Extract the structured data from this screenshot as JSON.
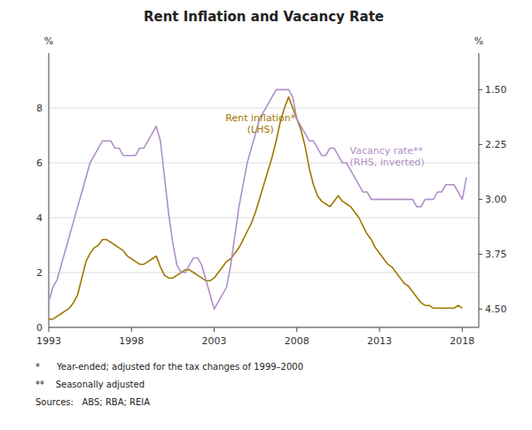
{
  "chart_data": {
    "type": "line",
    "title": "Rent Inflation and Vacancy Rate",
    "ylabel": "%",
    "y2label": "%",
    "xlim": [
      1993,
      2019
    ],
    "xticks": [
      1993,
      1998,
      2003,
      2008,
      2013,
      2018
    ],
    "ylim": [
      0,
      10
    ],
    "yticks": [
      0,
      2,
      4,
      6,
      8
    ],
    "y2lim": [
      4.75,
      1.0
    ],
    "y2ticks": [
      {
        "value": 4.5,
        "label": "4.50"
      },
      {
        "value": 3.75,
        "label": "3.75"
      },
      {
        "value": 3.0,
        "label": "3.00"
      },
      {
        "value": 2.25,
        "label": "2.25"
      },
      {
        "value": 1.5,
        "label": "1.50"
      }
    ],
    "grid": true,
    "series": [
      {
        "color": "#a07800",
        "x": [
          1993.0,
          1993.25,
          1993.5,
          1993.75,
          1994.0,
          1994.25,
          1994.5,
          1994.75,
          1995.0,
          1995.25,
          1995.5,
          1995.75,
          1996.0,
          1996.25,
          1996.5,
          1996.75,
          1997.0,
          1997.25,
          1997.5,
          1997.75,
          1998.0,
          1998.25,
          1998.5,
          1998.75,
          1999.0,
          1999.25,
          1999.5,
          1999.75,
          2000.0,
          2000.25,
          2000.5,
          2000.75,
          2001.0,
          2001.25,
          2001.5,
          2001.75,
          2002.0,
          2002.25,
          2002.5,
          2002.75,
          2003.0,
          2003.25,
          2003.5,
          2003.75,
          2004.0,
          2004.25,
          2004.5,
          2004.75,
          2005.0,
          2005.25,
          2005.5,
          2005.75,
          2006.0,
          2006.25,
          2006.5,
          2006.75,
          2007.0,
          2007.25,
          2007.5,
          2007.75,
          2008.0,
          2008.25,
          2008.5,
          2008.75,
          2009.0,
          2009.25,
          2009.5,
          2009.75,
          2010.0,
          2010.25,
          2010.5,
          2010.75,
          2011.0,
          2011.25,
          2011.5,
          2011.75,
          2012.0,
          2012.25,
          2012.5,
          2012.75,
          2013.0,
          2013.25,
          2013.5,
          2013.75,
          2014.0,
          2014.25,
          2014.5,
          2014.75,
          2015.0,
          2015.25,
          2015.5,
          2015.75,
          2016.0,
          2016.25,
          2016.5,
          2016.75,
          2017.0,
          2017.25,
          2017.5,
          2017.75,
          2018.0
        ],
        "values": [
          0.3,
          0.3,
          0.4,
          0.5,
          0.6,
          0.7,
          0.9,
          1.2,
          1.8,
          2.4,
          2.7,
          2.9,
          3.0,
          3.2,
          3.2,
          3.1,
          3.0,
          2.9,
          2.8,
          2.6,
          2.5,
          2.4,
          2.3,
          2.3,
          2.4,
          2.5,
          2.6,
          2.2,
          1.9,
          1.8,
          1.8,
          1.9,
          2.0,
          2.1,
          2.1,
          2.0,
          1.9,
          1.8,
          1.7,
          1.7,
          1.8,
          2.0,
          2.2,
          2.4,
          2.5,
          2.7,
          2.9,
          3.2,
          3.5,
          3.8,
          4.2,
          4.7,
          5.2,
          5.7,
          6.2,
          6.8,
          7.5,
          8.0,
          8.4,
          8.0,
          7.6,
          7.2,
          6.6,
          5.8,
          5.2,
          4.8,
          4.6,
          4.5,
          4.4,
          4.6,
          4.8,
          4.6,
          4.5,
          4.4,
          4.2,
          4.0,
          3.7,
          3.4,
          3.2,
          2.9,
          2.7,
          2.5,
          2.3,
          2.2,
          2.0,
          1.8,
          1.6,
          1.5,
          1.3,
          1.1,
          0.9,
          0.8,
          0.8,
          0.7,
          0.7,
          0.7,
          0.7,
          0.7,
          0.7,
          0.8,
          0.7
        ]
      },
      {
        "color": "#b090c8",
        "axis": "y2",
        "x": [
          1993.0,
          1993.25,
          1993.5,
          1993.75,
          1994.0,
          1994.25,
          1994.5,
          1994.75,
          1995.0,
          1995.25,
          1995.5,
          1995.75,
          1996.0,
          1996.25,
          1996.5,
          1996.75,
          1997.0,
          1997.25,
          1997.5,
          1997.75,
          1998.0,
          1998.25,
          1998.5,
          1998.75,
          1999.0,
          1999.25,
          1999.5,
          1999.75,
          2000.0,
          2000.25,
          2000.5,
          2000.75,
          2001.0,
          2001.25,
          2001.5,
          2001.75,
          2002.0,
          2002.25,
          2002.5,
          2002.75,
          2003.0,
          2003.25,
          2003.5,
          2003.75,
          2004.0,
          2004.25,
          2004.5,
          2004.75,
          2005.0,
          2005.25,
          2005.5,
          2005.75,
          2006.0,
          2006.25,
          2006.5,
          2006.75,
          2007.0,
          2007.25,
          2007.5,
          2007.75,
          2008.0,
          2008.25,
          2008.5,
          2008.75,
          2009.0,
          2009.25,
          2009.5,
          2009.75,
          2010.0,
          2010.25,
          2010.5,
          2010.75,
          2011.0,
          2011.25,
          2011.5,
          2011.75,
          2012.0,
          2012.25,
          2012.5,
          2012.75,
          2013.0,
          2013.25,
          2013.5,
          2013.75,
          2014.0,
          2014.25,
          2014.5,
          2014.75,
          2015.0,
          2015.25,
          2015.5,
          2015.75,
          2016.0,
          2016.25,
          2016.5,
          2016.75,
          2017.0,
          2017.25,
          2017.5,
          2017.75,
          2018.0,
          2018.25
        ],
        "values": [
          4.4,
          4.2,
          4.1,
          3.9,
          3.7,
          3.5,
          3.3,
          3.1,
          2.9,
          2.7,
          2.5,
          2.4,
          2.3,
          2.2,
          2.2,
          2.2,
          2.3,
          2.3,
          2.4,
          2.4,
          2.4,
          2.4,
          2.3,
          2.3,
          2.2,
          2.1,
          2.0,
          2.2,
          2.7,
          3.2,
          3.6,
          3.9,
          4.0,
          4.0,
          3.9,
          3.8,
          3.8,
          3.9,
          4.1,
          4.3,
          4.5,
          4.4,
          4.3,
          4.2,
          3.9,
          3.5,
          3.1,
          2.8,
          2.5,
          2.3,
          2.1,
          1.9,
          1.8,
          1.7,
          1.6,
          1.5,
          1.5,
          1.5,
          1.5,
          1.6,
          1.9,
          2.0,
          2.1,
          2.2,
          2.2,
          2.3,
          2.4,
          2.4,
          2.3,
          2.3,
          2.4,
          2.5,
          2.5,
          2.6,
          2.7,
          2.8,
          2.9,
          2.9,
          3.0,
          3.0,
          3.0,
          3.0,
          3.0,
          3.0,
          3.0,
          3.0,
          3.0,
          3.0,
          3.0,
          3.1,
          3.1,
          3.0,
          3.0,
          3.0,
          2.9,
          2.9,
          2.8,
          2.8,
          2.8,
          2.9,
          3.0,
          2.7
        ]
      }
    ],
    "annotations": [
      {
        "text": "Rent inflation*\n(LHS)",
        "x": 2005.8,
        "y": 7.0,
        "color": "#a07800"
      },
      {
        "text": "Vacancy rate**\n(RHS, inverted)",
        "x": 2011.2,
        "y": 5.8,
        "color": "#b090c8"
      }
    ],
    "footnotes": [
      "*      Year-ended; adjusted for the tax changes of 1999–2000",
      "**    Seasonally adjusted",
      "Sources:   ABS; RBA; REIA"
    ]
  }
}
